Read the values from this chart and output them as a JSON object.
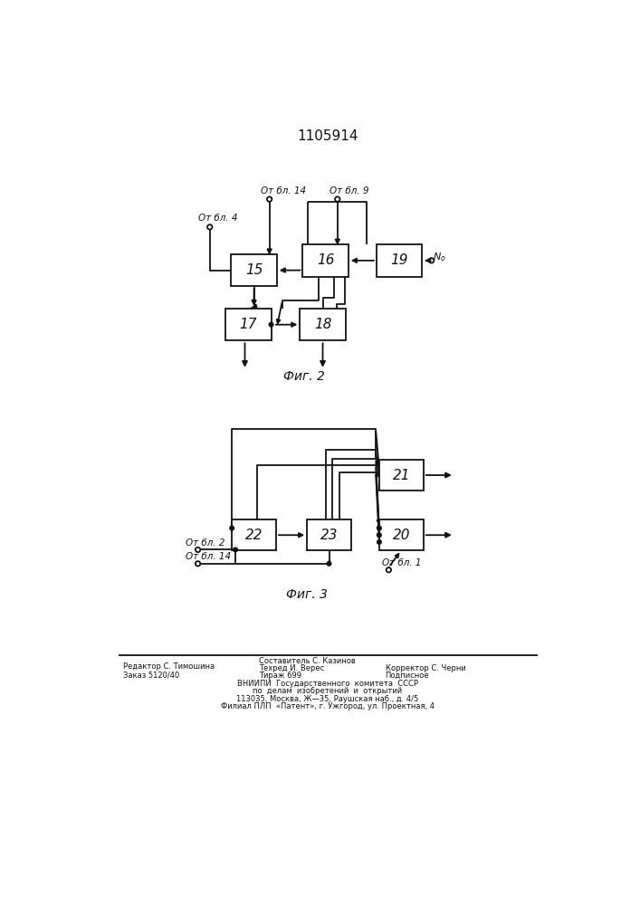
{
  "title": "1105914",
  "fig2_caption": "Фиг. 2",
  "fig3_caption": "Фиг. 3",
  "bg": "#ffffff",
  "lc": "#111111",
  "lw": 1.3
}
